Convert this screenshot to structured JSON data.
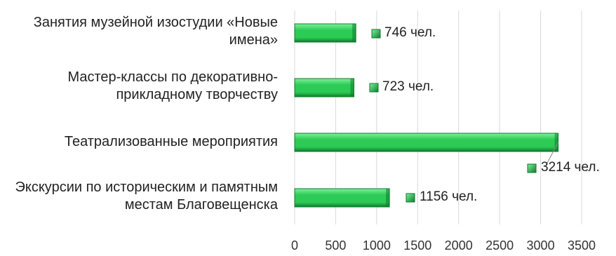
{
  "chart_data": {
    "type": "bar",
    "orientation": "horizontal",
    "categories": [
      "Занятия музейной изостудии «Новые имена»",
      "Мастер-классы по декоративно-прикладному творчеству",
      "Театрализованные мероприятия",
      "Экскурсии по историческим и памятным местам Благовещенска"
    ],
    "values": [
      746,
      723,
      3214,
      1156
    ],
    "unit": "чел.",
    "xlim": [
      0,
      3500
    ],
    "ticks": [
      0,
      500,
      1000,
      1500,
      2000,
      2500,
      3000,
      3500
    ],
    "tick_labels": [
      "0",
      "500",
      "1000",
      "1500",
      "2000",
      "2500",
      "3000",
      "3500"
    ],
    "grid": true,
    "legend": "none",
    "colors": {
      "bar_light": "#7CF29A",
      "bar_mid": "#2CCB55",
      "bar_dark": "#0E7A2E",
      "grid": "#D9D9D9",
      "marker": "#1A9B45"
    }
  }
}
